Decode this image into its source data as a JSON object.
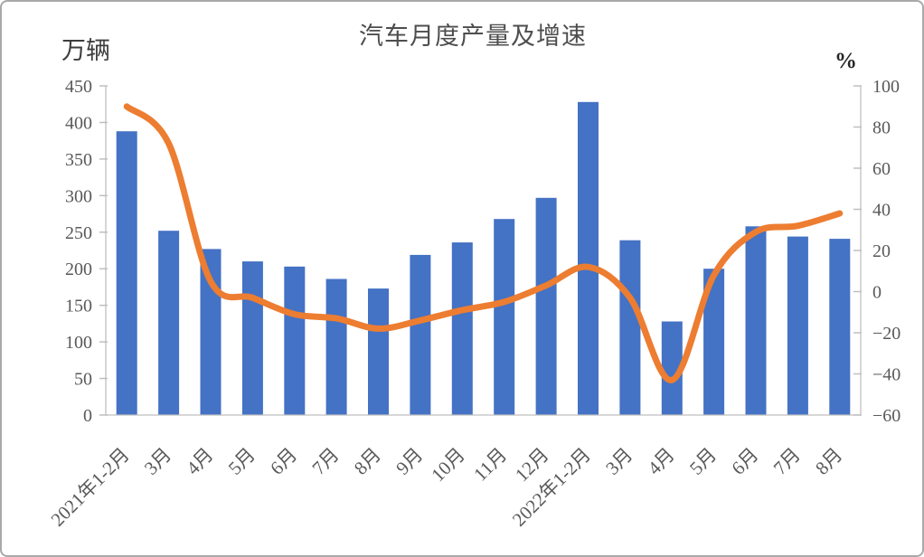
{
  "window": {
    "background": "#ffffff",
    "border_color": "#a9a9a9"
  },
  "chart_data": {
    "type": "combo-bar-line",
    "title": "汽车月度产量及增速",
    "categories": [
      "2021年1-2月",
      "3月",
      "4月",
      "5月",
      "6月",
      "7月",
      "8月",
      "9月",
      "10月",
      "11月",
      "12月",
      "2022年1-2月",
      "3月",
      "4月",
      "5月",
      "6月",
      "7月",
      "8月"
    ],
    "series": [
      {
        "id": "production",
        "type": "bar",
        "axis": "left",
        "color": "#4472C4",
        "values": [
          388,
          252,
          227,
          210,
          203,
          186,
          173,
          219,
          236,
          268,
          297,
          428,
          239,
          128,
          200,
          258,
          244,
          241
        ]
      },
      {
        "id": "growth",
        "type": "line",
        "axis": "right",
        "color": "#ED7D31",
        "values": [
          90,
          72,
          5,
          -3,
          -11,
          -13,
          -18,
          -14,
          -9,
          -5,
          3,
          12,
          -3,
          -43,
          8,
          29,
          32,
          38
        ]
      }
    ],
    "left_axis": {
      "label": "万辆",
      "min": 0,
      "max": 450,
      "step": 50,
      "ticks": [
        450,
        400,
        350,
        300,
        250,
        200,
        150,
        100,
        50,
        0
      ]
    },
    "right_axis": {
      "label": "%",
      "min": -60,
      "max": 100,
      "step": 20,
      "ticks": [
        100,
        80,
        60,
        40,
        20,
        0,
        -20,
        -40,
        -60
      ]
    },
    "grid": false,
    "legend": "none",
    "x_label_rotation": -45,
    "text_color": "#595959",
    "axis_color": "#BFBFBF",
    "title_color": "#4d4d4d"
  }
}
